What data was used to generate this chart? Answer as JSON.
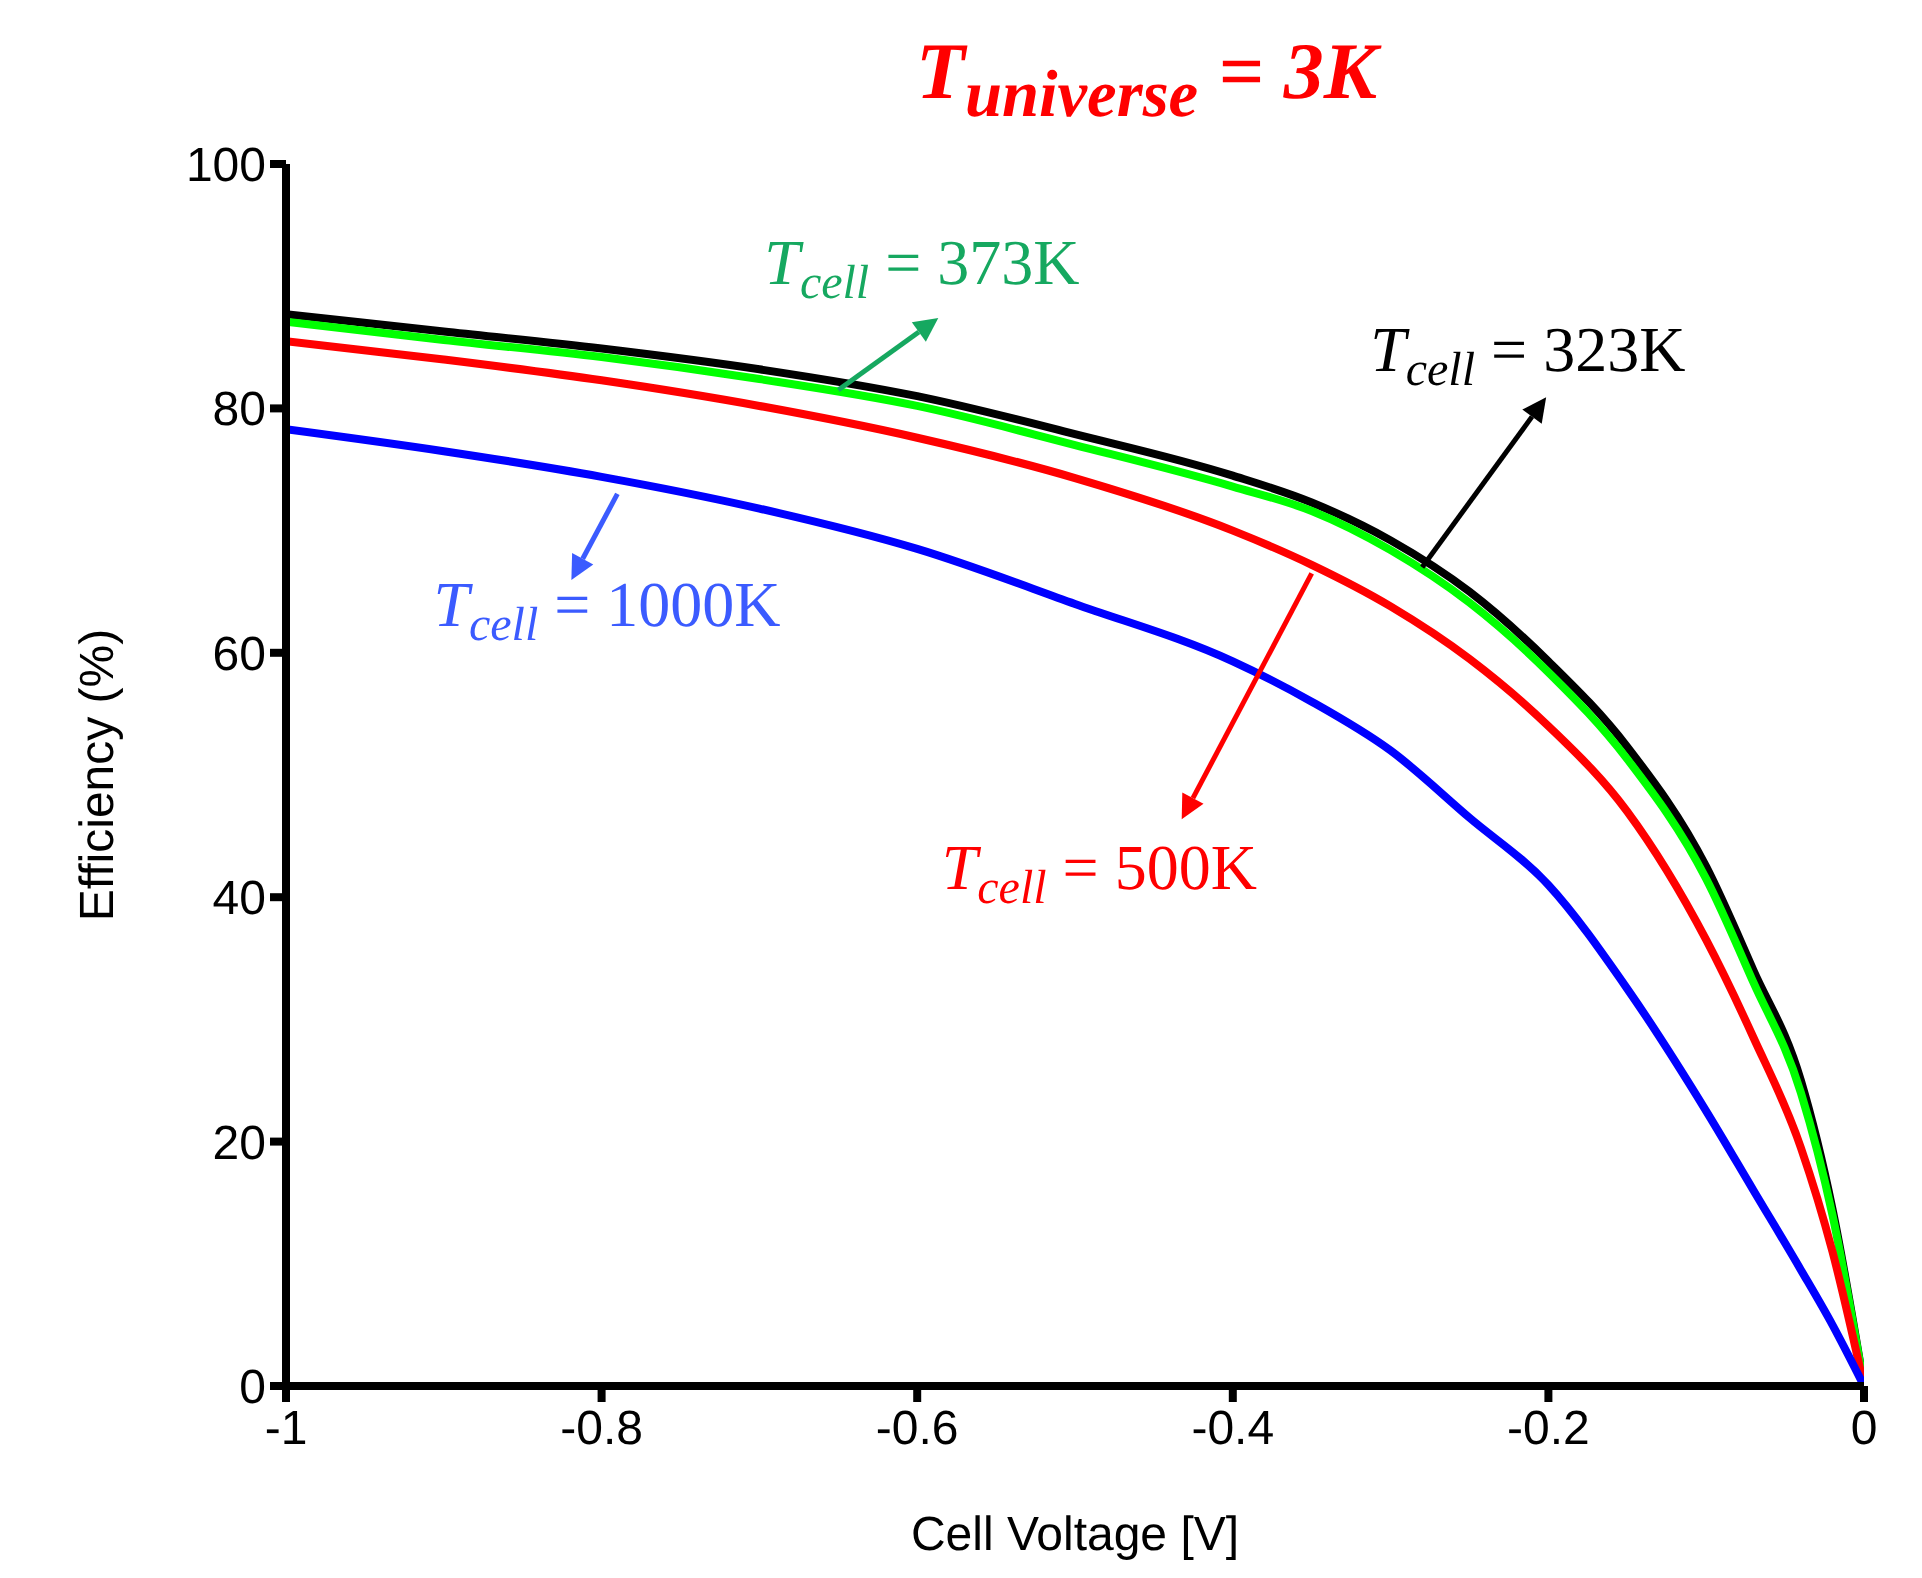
{
  "chart_data": {
    "type": "line",
    "title": "T$_{universe}$ = 3K",
    "xlabel": "Cell Voltage [V]",
    "ylabel": "Efficiency (%)",
    "x": [
      -1,
      -0.9,
      -0.8,
      -0.7,
      -0.6,
      -0.5,
      -0.4,
      -0.35,
      -0.3,
      -0.25,
      -0.2,
      -0.15,
      -0.1,
      -0.07,
      -0.04,
      -0.02,
      0
    ],
    "series": [
      {
        "color": "#000000",
        "values": [
          87.7,
          86.3,
          84.9,
          83.2,
          81.0,
          77.9,
          74.5,
          72.3,
          69.2,
          65,
          59.3,
          52.3,
          42.5,
          34,
          25,
          14.5,
          0
        ]
      },
      {
        "color": "#00ff00",
        "values": [
          87.1,
          85.6,
          84.2,
          82.4,
          80.2,
          77.0,
          73.6,
          71.6,
          68.4,
          64.1,
          58.4,
          51.3,
          41.5,
          33,
          24,
          14,
          0
        ]
      },
      {
        "color": "#ff0000",
        "values": [
          85.5,
          84.0,
          82.3,
          80.2,
          77.6,
          74.3,
          70.0,
          67.2,
          63.8,
          59.5,
          54,
          47,
          36.5,
          28.5,
          19.5,
          11,
          0
        ]
      },
      {
        "color": "#0000ff",
        "values": [
          78.3,
          76.5,
          74.4,
          71.8,
          68.5,
          64.0,
          59.3,
          56,
          52,
          46.5,
          41,
          32.5,
          22.5,
          16,
          9.5,
          5,
          0
        ]
      }
    ],
    "xlim": [
      -1,
      0
    ],
    "xticks": [
      -1,
      -0.8,
      -0.6,
      -0.4,
      -0.2,
      0
    ],
    "ylim": [
      0,
      100
    ],
    "yticks": [
      0,
      20,
      40,
      60,
      80,
      100
    ],
    "grid": false,
    "legend": false,
    "marker": "none",
    "line_style": "solid",
    "annotations": [
      {
        "text": "T$_{cell}$ = 373K",
        "x": -0.65,
        "y": 81.5
      },
      {
        "text": "T$_{cell}$ = 323K",
        "x": -0.28,
        "y": 67
      },
      {
        "text": "T$_{cell}$ = 500K",
        "x": -0.35,
        "y": 66.5
      },
      {
        "text": "T$_{cell}$ = 1000K",
        "x": -0.79,
        "y": 73
      }
    ]
  }
}
